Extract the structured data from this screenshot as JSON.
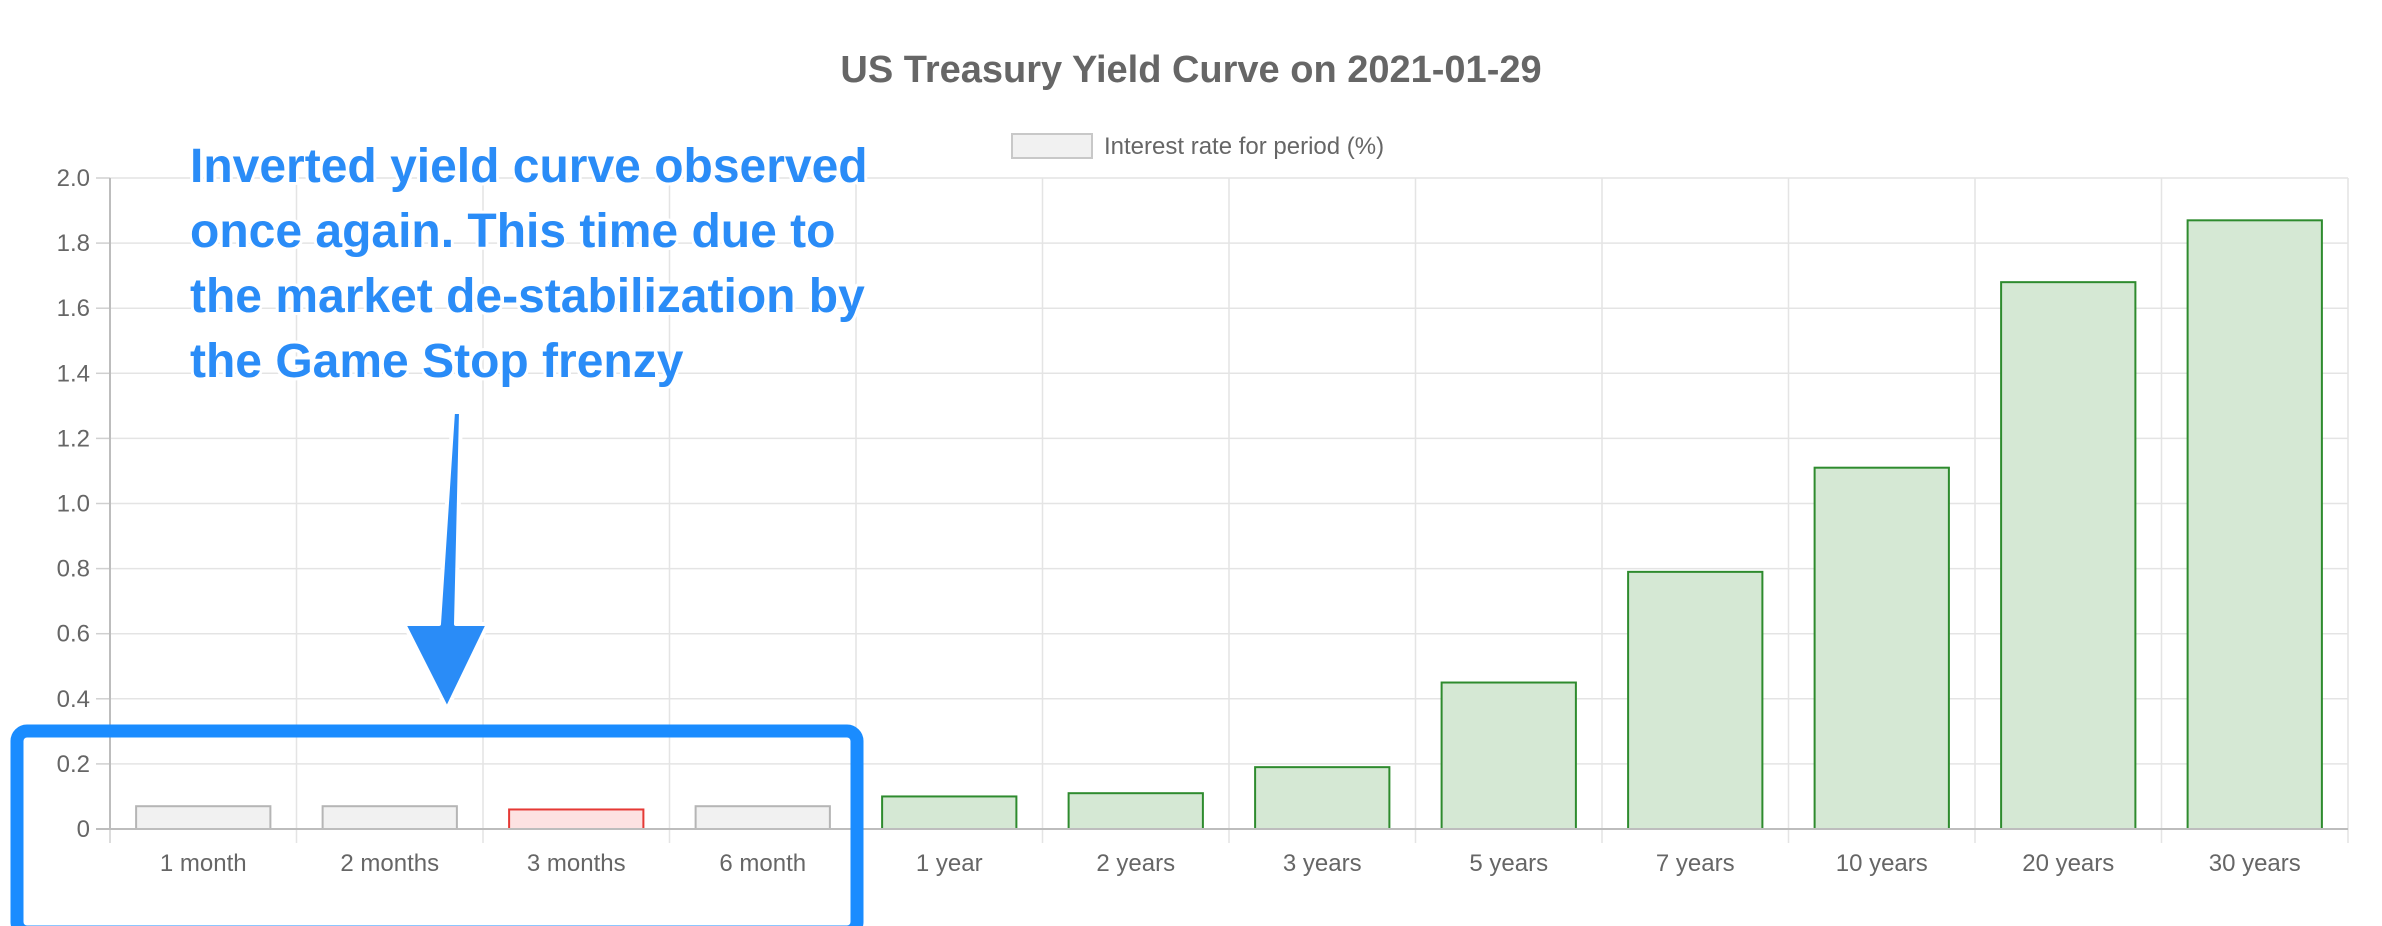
{
  "chart_data": {
    "type": "bar",
    "title": "US Treasury Yield Curve on 2021-01-29",
    "legend": {
      "label": "Interest rate for period (%)",
      "position": "top",
      "swatch_fill": "#f1f1f1",
      "swatch_stroke": "#c8c8c8"
    },
    "categories": [
      "1 month",
      "2 months",
      "3 months",
      "6 month",
      "1 year",
      "2 years",
      "3 years",
      "5 years",
      "7 years",
      "10 years",
      "20 years",
      "30 years"
    ],
    "series": [
      {
        "name": "Interest rate for period (%)",
        "values": [
          0.07,
          0.07,
          0.06,
          0.07,
          0.1,
          0.11,
          0.19,
          0.45,
          0.79,
          1.11,
          1.68,
          1.87
        ],
        "fills": [
          "#f1f1f1",
          "#f1f1f1",
          "#fde2e2",
          "#f1f1f1",
          "#d5e8d4",
          "#d5e8d4",
          "#d5e8d4",
          "#d5e8d4",
          "#d5e8d4",
          "#d5e8d4",
          "#d5e8d4",
          "#d5e8d4"
        ],
        "strokes": [
          "#b5b5b5",
          "#b5b5b5",
          "#e53935",
          "#b5b5b5",
          "#2e8b2e",
          "#2e8b2e",
          "#2e8b2e",
          "#2e8b2e",
          "#2e8b2e",
          "#2e8b2e",
          "#2e8b2e",
          "#2e8b2e"
        ]
      }
    ],
    "ylim": [
      0,
      2.0
    ],
    "yticks": [
      "0",
      "0.2",
      "0.4",
      "0.6",
      "0.8",
      "1.0",
      "1.2",
      "1.4",
      "1.6",
      "1.8",
      "2.0"
    ],
    "grid": true,
    "annotation": {
      "lines": [
        "Inverted yield curve observed",
        "once again. This time due to",
        "the market de-stabilization by",
        "the Game Stop frenzy"
      ],
      "color": "#2a8cf7",
      "highlight_box_color": "#1a8cff",
      "highlighted_categories": [
        "1 month",
        "2 months",
        "3 months",
        "6 month"
      ]
    }
  }
}
